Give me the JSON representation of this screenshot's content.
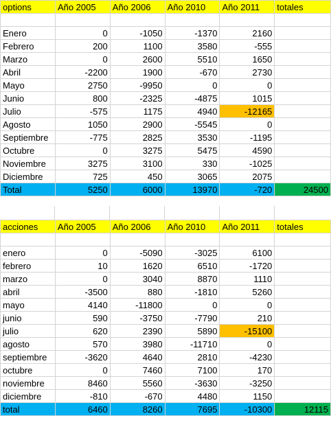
{
  "options": {
    "header": [
      "options",
      "Año 2005",
      "Año 2006",
      "Año 2010",
      "Año 2011",
      "totales"
    ],
    "rows": [
      [
        "",
        "",
        "",
        "",
        "",
        ""
      ],
      [
        "Enero",
        "0",
        "-1050",
        "-1370",
        "2160",
        ""
      ],
      [
        "Febrero",
        "200",
        "1100",
        "3580",
        "-555",
        ""
      ],
      [
        "Marzo",
        "0",
        "2600",
        "5510",
        "1650",
        ""
      ],
      [
        "Abril",
        "-2200",
        "1900",
        "-670",
        "2730",
        ""
      ],
      [
        "Mayo",
        "2750",
        "-9950",
        "0",
        "0",
        ""
      ],
      [
        "Junio",
        "800",
        "-2325",
        "-4875",
        "1015",
        ""
      ],
      [
        "Julio",
        "-575",
        "1175",
        "4940",
        "-12165",
        ""
      ],
      [
        "Agosto",
        "1050",
        "2900",
        "-5545",
        "0",
        ""
      ],
      [
        "Septiembre",
        "-775",
        "2825",
        "3530",
        "-1195",
        ""
      ],
      [
        "Octubre",
        "0",
        "3275",
        "5475",
        "4590",
        ""
      ],
      [
        "Noviembre",
        "3275",
        "3100",
        "330",
        "-1025",
        ""
      ],
      [
        "Diciembre",
        "725",
        "450",
        "3065",
        "2075",
        ""
      ]
    ],
    "total": [
      "Total",
      "5250",
      "6000",
      "13970",
      "-720",
      "24500"
    ],
    "highlight_row": 7,
    "highlight_col": 4
  },
  "acciones": {
    "header": [
      "acciones",
      "Año 2005",
      "Año 2006",
      "Año 2010",
      "Año 2011",
      "totales"
    ],
    "rows": [
      [
        "",
        "",
        "",
        "",
        "",
        ""
      ],
      [
        "enero",
        "0",
        "-5090",
        "-3025",
        "6100",
        ""
      ],
      [
        "febrero",
        "10",
        "1620",
        "6510",
        "-1720",
        ""
      ],
      [
        "marzo",
        "0",
        "3040",
        "8870",
        "1110",
        ""
      ],
      [
        "abril",
        "-3500",
        "880",
        "-1810",
        "5260",
        ""
      ],
      [
        "mayo",
        "4140",
        "-11800",
        "0",
        "0",
        ""
      ],
      [
        "junio",
        "590",
        "-3750",
        "-7790",
        "210",
        ""
      ],
      [
        "julio",
        "620",
        "2390",
        "5890",
        "-15100",
        ""
      ],
      [
        "agosto",
        "570",
        "3980",
        "-11710",
        "0",
        ""
      ],
      [
        "septiembre",
        "-3620",
        "4640",
        "2810",
        "-4230",
        ""
      ],
      [
        "octubre",
        "0",
        "7460",
        "7100",
        "170",
        ""
      ],
      [
        "noviembre",
        "8460",
        "5560",
        "-3630",
        "-3250",
        ""
      ],
      [
        "diciembre",
        "-810",
        "-670",
        "4480",
        "1150",
        ""
      ]
    ],
    "total": [
      "total",
      "6460",
      "8260",
      "7695",
      "-10300",
      "12115"
    ],
    "highlight_row": 7,
    "highlight_col": 4
  },
  "colors": {
    "header": "#ffff00",
    "total": "#00b0f0",
    "grand_total": "#00b050",
    "highlight": "#ffc000",
    "gridline": "#d4d4d4"
  }
}
